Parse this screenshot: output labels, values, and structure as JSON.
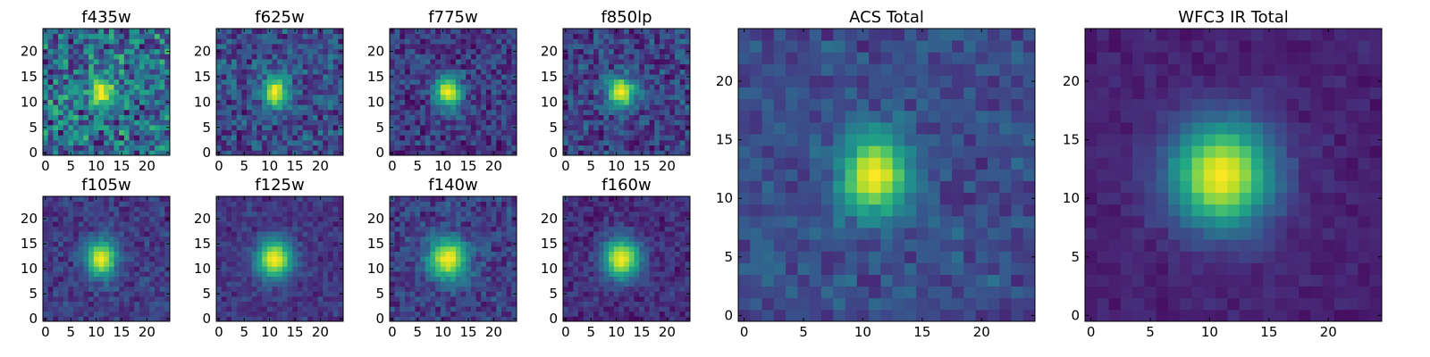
{
  "figure": {
    "background": "#ffffff",
    "colormap": "viridis"
  },
  "chart_data": [
    {
      "type": "heatmap",
      "title": "f435w",
      "grid_size": 25,
      "xlim": [
        -0.5,
        24.5
      ],
      "ylim": [
        -0.5,
        24.5
      ],
      "xticks": [
        0,
        5,
        10,
        15,
        20
      ],
      "yticks": [
        0,
        5,
        10,
        15,
        20
      ],
      "xlabel": "",
      "ylabel": "",
      "peak": [
        11,
        12
      ],
      "sigma": [
        1.6,
        2.0
      ],
      "noise": 0.55,
      "floor": 0.45,
      "seed": 11
    },
    {
      "type": "heatmap",
      "title": "f625w",
      "grid_size": 25,
      "xlim": [
        -0.5,
        24.5
      ],
      "ylim": [
        -0.5,
        24.5
      ],
      "xticks": [
        0,
        5,
        10,
        15,
        20
      ],
      "yticks": [
        0,
        5,
        10,
        15,
        20
      ],
      "xlabel": "",
      "ylabel": "",
      "peak": [
        11,
        12
      ],
      "sigma": [
        1.7,
        2.1
      ],
      "noise": 0.35,
      "floor": 0.3,
      "seed": 23
    },
    {
      "type": "heatmap",
      "title": "f775w",
      "grid_size": 25,
      "xlim": [
        -0.5,
        24.5
      ],
      "ylim": [
        -0.5,
        24.5
      ],
      "xticks": [
        0,
        5,
        10,
        15,
        20
      ],
      "yticks": [
        0,
        5,
        10,
        15,
        20
      ],
      "xlabel": "",
      "ylabel": "",
      "peak": [
        11,
        12
      ],
      "sigma": [
        1.9,
        2.2
      ],
      "noise": 0.3,
      "floor": 0.22,
      "seed": 37
    },
    {
      "type": "heatmap",
      "title": "f850lp",
      "grid_size": 25,
      "xlim": [
        -0.5,
        24.5
      ],
      "ylim": [
        -0.5,
        24.5
      ],
      "xticks": [
        0,
        5,
        10,
        15,
        20
      ],
      "yticks": [
        0,
        5,
        10,
        15,
        20
      ],
      "xlabel": "",
      "ylabel": "",
      "peak": [
        11,
        12
      ],
      "sigma": [
        1.9,
        2.1
      ],
      "noise": 0.32,
      "floor": 0.25,
      "seed": 41
    },
    {
      "type": "heatmap",
      "title": "ACS Total",
      "grid_size": 25,
      "xlim": [
        -0.5,
        24.5
      ],
      "ylim": [
        -0.5,
        24.5
      ],
      "xticks": [
        0,
        5,
        10,
        15,
        20
      ],
      "yticks": [
        0,
        5,
        10,
        15,
        20
      ],
      "xlabel": "",
      "ylabel": "",
      "peak": [
        11,
        12
      ],
      "sigma": [
        2.0,
        2.4
      ],
      "noise": 0.18,
      "floor": 0.3,
      "seed": 53
    },
    {
      "type": "heatmap",
      "title": "f105w",
      "grid_size": 25,
      "xlim": [
        -0.5,
        24.5
      ],
      "ylim": [
        -0.5,
        24.5
      ],
      "xticks": [
        0,
        5,
        10,
        15,
        20
      ],
      "yticks": [
        0,
        5,
        10,
        15,
        20
      ],
      "xlabel": "",
      "ylabel": "",
      "peak": [
        11,
        12
      ],
      "sigma": [
        2.1,
        2.6
      ],
      "noise": 0.2,
      "floor": 0.22,
      "seed": 61
    },
    {
      "type": "heatmap",
      "title": "f125w",
      "grid_size": 25,
      "xlim": [
        -0.5,
        24.5
      ],
      "ylim": [
        -0.5,
        24.5
      ],
      "xticks": [
        0,
        5,
        10,
        15,
        20
      ],
      "yticks": [
        0,
        5,
        10,
        15,
        20
      ],
      "xlabel": "",
      "ylabel": "",
      "peak": [
        11,
        12
      ],
      "sigma": [
        2.5,
        2.7
      ],
      "noise": 0.15,
      "floor": 0.2,
      "seed": 73
    },
    {
      "type": "heatmap",
      "title": "f140w",
      "grid_size": 25,
      "xlim": [
        -0.5,
        24.5
      ],
      "ylim": [
        -0.5,
        24.5
      ],
      "xticks": [
        0,
        5,
        10,
        15,
        20
      ],
      "yticks": [
        0,
        5,
        10,
        15,
        20
      ],
      "xlabel": "",
      "ylabel": "",
      "peak": [
        11,
        12
      ],
      "sigma": [
        2.7,
        2.9
      ],
      "noise": 0.25,
      "floor": 0.24,
      "seed": 89
    },
    {
      "type": "heatmap",
      "title": "f160w",
      "grid_size": 25,
      "xlim": [
        -0.5,
        24.5
      ],
      "ylim": [
        -0.5,
        24.5
      ],
      "xticks": [
        0,
        5,
        10,
        15,
        20
      ],
      "yticks": [
        0,
        5,
        10,
        15,
        20
      ],
      "xlabel": "",
      "ylabel": "",
      "peak": [
        11,
        12
      ],
      "sigma": [
        2.6,
        2.8
      ],
      "noise": 0.18,
      "floor": 0.16,
      "seed": 97
    },
    {
      "type": "heatmap",
      "title": "WFC3 IR Total",
      "grid_size": 25,
      "xlim": [
        -0.5,
        24.5
      ],
      "ylim": [
        -0.5,
        24.5
      ],
      "xticks": [
        0,
        5,
        10,
        15,
        20
      ],
      "yticks": [
        0,
        5,
        10,
        15,
        20
      ],
      "xlabel": "",
      "ylabel": "",
      "peak": [
        11,
        12
      ],
      "sigma": [
        3.0,
        3.2
      ],
      "noise": 0.08,
      "floor": 0.12,
      "seed": 101
    }
  ]
}
